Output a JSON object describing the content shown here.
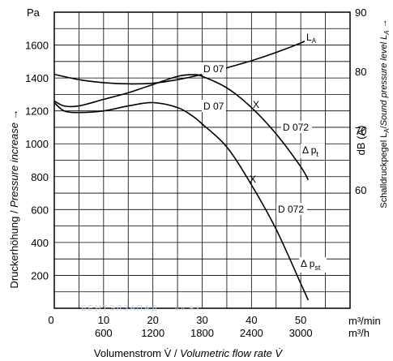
{
  "chart_data": {
    "type": "line",
    "title": "",
    "left_axis": {
      "unit": "Pa",
      "ticks": [
        "200",
        "400",
        "600",
        "800",
        "1000",
        "1200",
        "1400",
        "1600"
      ],
      "range": [
        0,
        1800
      ],
      "title_de": "Druckerhöhung",
      "title_en": "Pressure increase →"
    },
    "right_axis": {
      "ticks": [
        "90",
        "80",
        "70",
        "60"
      ],
      "range": [
        40,
        90
      ],
      "title_de": "Schalldruckpegel L",
      "title_en": "Sound pressure level L",
      "subscript": "A",
      "arrow": " →",
      "unit": "dB (A)"
    },
    "x_axis": {
      "range": [
        0,
        60
      ],
      "zero": "0",
      "ticks_m3min": [
        "10",
        "20",
        "30",
        "40",
        "50"
      ],
      "ticks_m3h": [
        "600",
        "1200",
        "1800",
        "2400",
        "3000"
      ],
      "unit_m3min": "m³/min",
      "unit_m3h": "m³/h",
      "title_de": "Volumenstrom V̇ / ",
      "title_en": "Volumetric flow rate V̇"
    },
    "series": [
      {
        "name": "L",
        "sub": "A",
        "axis": "right",
        "x": [
          0,
          5,
          10,
          15,
          20,
          25,
          30,
          35,
          40,
          45,
          50,
          52
        ],
        "y": [
          79.5,
          78.6,
          78.1,
          77.9,
          78.0,
          78.6,
          79.5,
          80.6,
          81.8,
          83.2,
          84.8,
          85.6
        ]
      },
      {
        "name": "D 07",
        "axis": "left",
        "x": [
          0,
          2,
          5,
          10,
          15,
          20,
          25,
          28,
          30,
          35,
          40,
          45,
          50,
          51.5
        ],
        "y": [
          1260,
          1230,
          1230,
          1270,
          1310,
          1360,
          1410,
          1420,
          1410,
          1340,
          1220,
          1060,
          860,
          780
        ]
      },
      {
        "name": "D 072",
        "axis": "left",
        "x": [
          0,
          2,
          5,
          10,
          15,
          20,
          25,
          28,
          30,
          35,
          40,
          45,
          50,
          51.5
        ],
        "y": [
          1250,
          1200,
          1190,
          1200,
          1230,
          1250,
          1220,
          1170,
          1120,
          980,
          750,
          480,
          150,
          50
        ]
      }
    ],
    "labels": {
      "la": "L",
      "la_sub": "A",
      "d07_upper": "D 07",
      "d07_lower": "D 07",
      "d072_upper": "D 072",
      "d072_lower": "D 072",
      "delta_pt": "Δ p",
      "delta_pt_sub": "t",
      "delta_pst": "Δ p",
      "delta_pst_sub": "st",
      "marker": "X"
    },
    "grid": true,
    "watermark": {
      "text": "ВЕНТЭЛЗАПАД",
      "suffix": "VV.BY"
    }
  }
}
